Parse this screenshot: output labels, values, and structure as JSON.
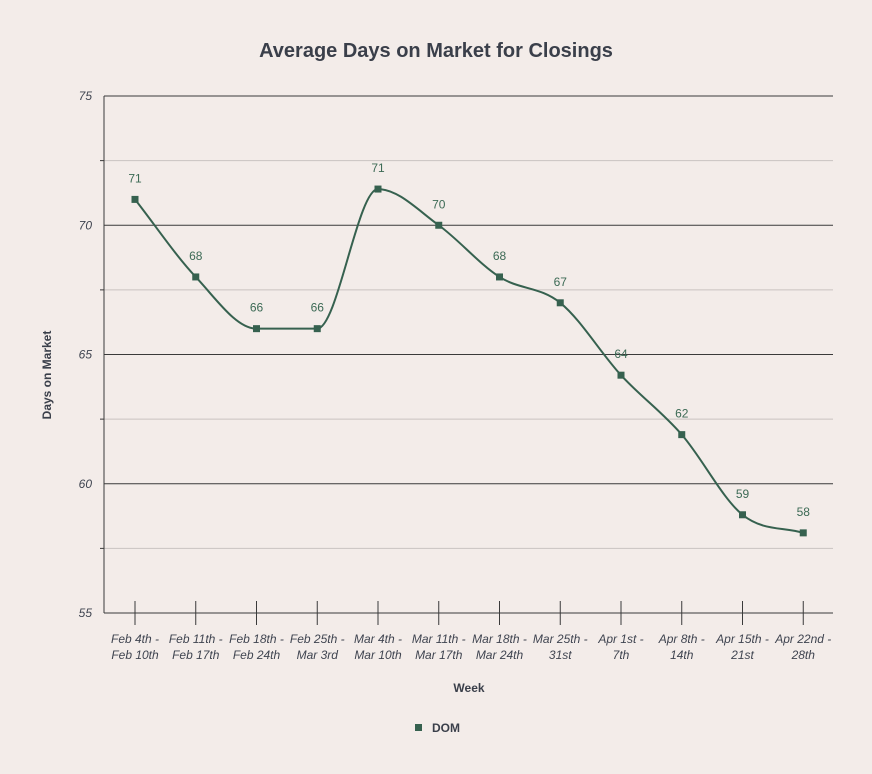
{
  "chart_data": {
    "type": "line",
    "title": "Average Days on Market for Closings",
    "xlabel": "Week",
    "ylabel": "Days on Market",
    "ylim": [
      55,
      75
    ],
    "yticks": [
      55,
      60,
      65,
      70,
      75
    ],
    "grid": true,
    "legend_position": "bottom",
    "categories": [
      [
        "Feb 4th -",
        "Feb 10th"
      ],
      [
        "Feb 11th -",
        "Feb 17th"
      ],
      [
        "Feb 18th -",
        "Feb 24th"
      ],
      [
        "Feb 25th -",
        "Mar 3rd"
      ],
      [
        "Mar 4th -",
        "Mar 10th"
      ],
      [
        "Mar 11th -",
        "Mar 17th"
      ],
      [
        "Mar 18th -",
        "Mar 24th"
      ],
      [
        "Mar 25th -",
        "31st"
      ],
      [
        "Apr 1st -",
        "7th"
      ],
      [
        "Apr 8th -",
        "14th"
      ],
      [
        "Apr 15th -",
        "21st"
      ],
      [
        "Apr 22nd -",
        "28th"
      ]
    ],
    "series": [
      {
        "name": "DOM",
        "color": "#36614f",
        "values": [
          71,
          68,
          66,
          66,
          71.4,
          70,
          68,
          67,
          64.2,
          61.9,
          58.8,
          58.1
        ],
        "labels": [
          "71",
          "68",
          "66",
          "66",
          "71",
          "70",
          "68",
          "67",
          "64",
          "62",
          "59",
          "58"
        ]
      }
    ],
    "colors": {
      "background": "#f3ece9",
      "major_grid": "#3a3a3a",
      "minor_grid": "#c9c3c0",
      "text": "#3a3f4a",
      "data_label": "#3c6a55"
    }
  }
}
